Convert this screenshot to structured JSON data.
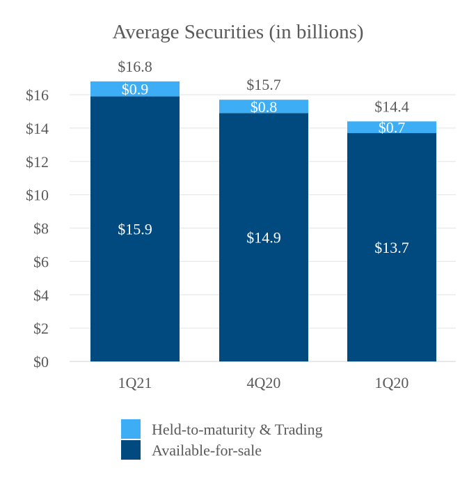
{
  "chart_data": {
    "type": "bar",
    "stacked": true,
    "title": "Average Securities (in billions)",
    "xlabel": "",
    "ylabel": "",
    "categories": [
      "1Q21",
      "4Q20",
      "1Q20"
    ],
    "series": [
      {
        "name": "Available-for-sale",
        "color": "#004a7f",
        "values": [
          15.9,
          14.9,
          13.7
        ],
        "labels": [
          "$15.9",
          "$14.9",
          "$13.7"
        ]
      },
      {
        "name": "Held-to-maturity & Trading",
        "color": "#3daef5",
        "values": [
          0.9,
          0.8,
          0.7
        ],
        "labels": [
          "$0.9",
          "$0.8",
          "$0.7"
        ]
      }
    ],
    "totals": [
      16.8,
      15.7,
      14.4
    ],
    "total_labels": [
      "$16.8",
      "$15.7",
      "$14.4"
    ],
    "ylim": [
      0,
      16
    ],
    "yticks": [
      0,
      2,
      4,
      6,
      8,
      10,
      12,
      14,
      16
    ],
    "ytick_labels": [
      "$0",
      "$2",
      "$4",
      "$6",
      "$8",
      "$10",
      "$12",
      "$14",
      "$16"
    ],
    "grid": true,
    "legend": {
      "position": "bottom",
      "items": [
        {
          "label": "Held-to-maturity & Trading",
          "color": "#3daef5"
        },
        {
          "label": "Available-for-sale",
          "color": "#004a7f"
        }
      ]
    }
  }
}
